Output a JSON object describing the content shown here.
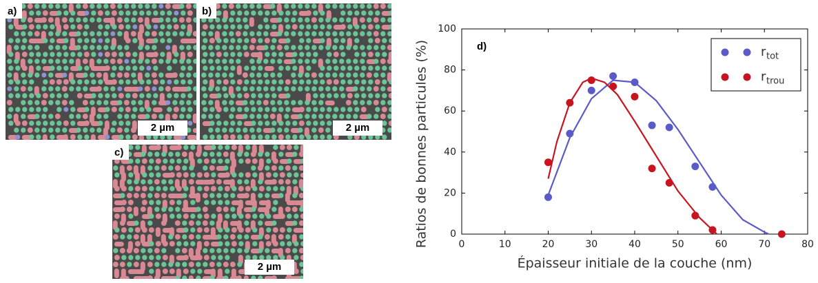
{
  "images": [
    {
      "label": "a)",
      "scale": "2 µm"
    },
    {
      "label": "b)",
      "scale": "2 µm"
    },
    {
      "label": "c)",
      "scale": "2 µm"
    }
  ],
  "chart_data": {
    "type": "scatter",
    "panel": "d)",
    "x_label": "Épaisseur initiale de la couche (nm)",
    "y_label": "Ratios de bonnes particules (%)",
    "xlim": [
      0,
      80
    ],
    "xticks": [
      0,
      10,
      20,
      30,
      40,
      50,
      60,
      70,
      80
    ],
    "ylim": [
      0,
      100
    ],
    "yticks": [
      0,
      20,
      40,
      60,
      80,
      100
    ],
    "legend": "upper right",
    "series": [
      {
        "name": "r",
        "subscript": "tot",
        "color": "#5a5ac8",
        "x": [
          20,
          25,
          30,
          35,
          40,
          44,
          48,
          54,
          58
        ],
        "values": [
          18,
          49,
          70,
          77,
          74,
          53,
          52,
          33,
          23
        ],
        "fit_x": [
          20,
          25,
          30,
          35,
          40,
          45,
          50,
          55,
          60,
          65,
          70,
          71
        ],
        "fit_values": [
          19,
          47,
          66,
          75,
          74,
          65,
          51,
          35,
          19,
          7,
          1,
          0
        ]
      },
      {
        "name": "r",
        "subscript": "trou",
        "color": "#c8141e",
        "x": [
          20,
          25,
          30,
          35,
          40,
          44,
          48,
          54,
          58,
          74
        ],
        "values": [
          35,
          64,
          75,
          72,
          67,
          32,
          25,
          9,
          2,
          0
        ],
        "fit_x": [
          20,
          22,
          25,
          28,
          30,
          33,
          36,
          40,
          45,
          50,
          55,
          58,
          59
        ],
        "fit_values": [
          27,
          45,
          64,
          74,
          76,
          74,
          68,
          55,
          38,
          21,
          8,
          2,
          0
        ]
      }
    ]
  }
}
